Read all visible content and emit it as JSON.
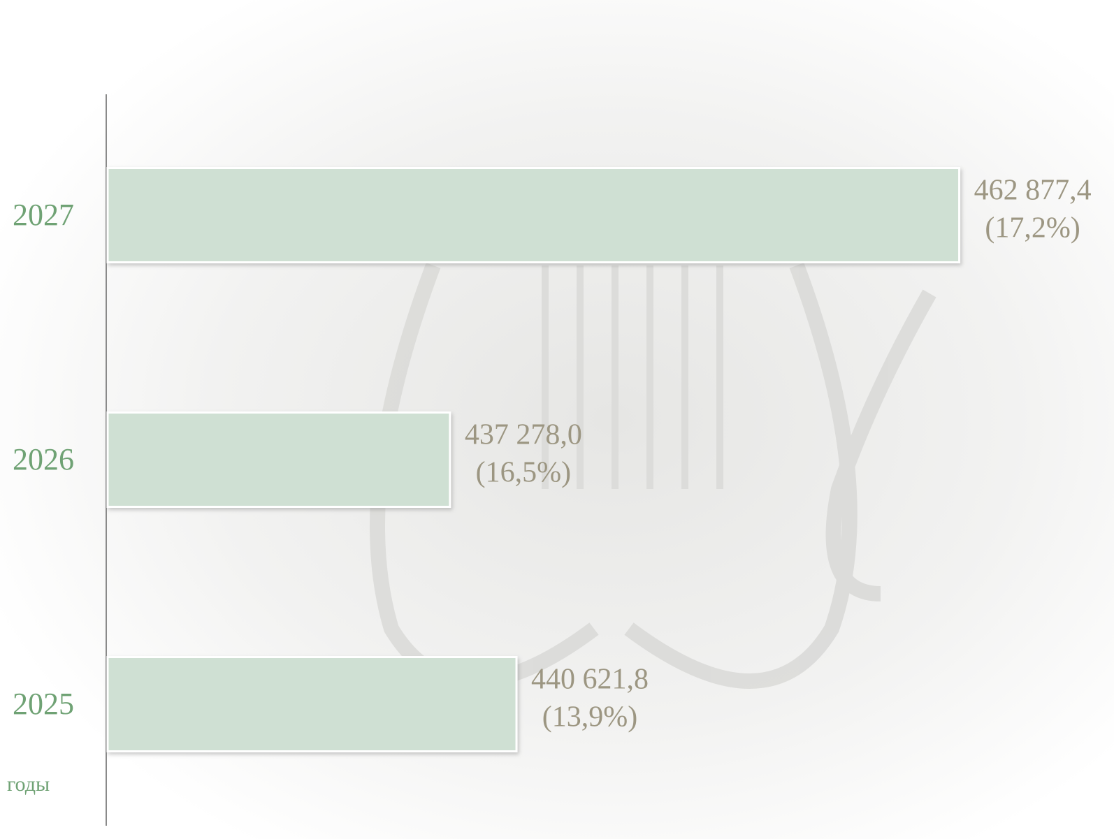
{
  "chart_data": {
    "type": "hbar",
    "y_label": "годы",
    "categories": [
      "2025",
      "2026",
      "2027"
    ],
    "values": [
      440621.8,
      437278.0,
      462877.4
    ],
    "value_labels": [
      "440 621,8",
      "437 278,0",
      "462 877,4"
    ],
    "shares": [
      13.9,
      16.5,
      17.2
    ],
    "share_labels": [
      "(13,9%)",
      "(16,5%)",
      "(17,2%)"
    ],
    "xlim": [
      420000,
      465000
    ],
    "color": "#cfe0d3"
  }
}
